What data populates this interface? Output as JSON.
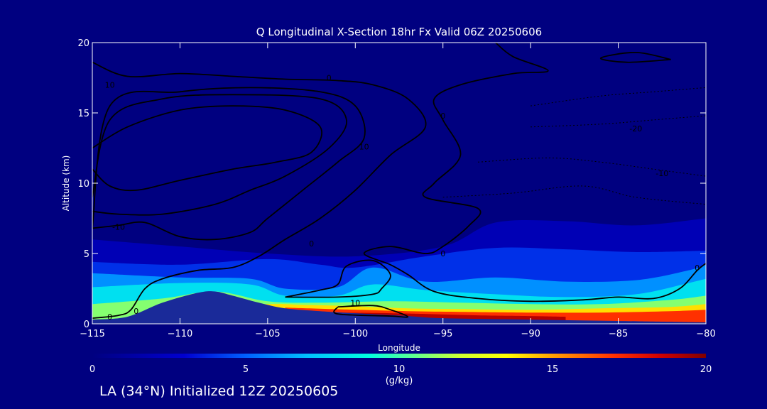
{
  "chart_data": {
    "type": "heatmap",
    "title": "Q Longitudinal X-Section 18hr  Fx Valid 06Z 20250606",
    "xlabel": "Longitude",
    "ylabel": "Altitude (km)",
    "xlim": [
      -115,
      -80
    ],
    "ylim": [
      0,
      20
    ],
    "x_ticks": [
      -115,
      -110,
      -105,
      -100,
      -95,
      -90,
      -85,
      -80
    ],
    "y_ticks": [
      0,
      5,
      10,
      15,
      20
    ],
    "colorbar": {
      "label": "(g/kg)",
      "range": [
        0,
        20
      ],
      "ticks": [
        0,
        5,
        10,
        15,
        20
      ],
      "stops": [
        {
          "v": 0,
          "c": "#000080"
        },
        {
          "v": 3,
          "c": "#0000d0"
        },
        {
          "v": 5,
          "c": "#0060ff"
        },
        {
          "v": 7,
          "c": "#00c0ff"
        },
        {
          "v": 9,
          "c": "#00ffe0"
        },
        {
          "v": 10.5,
          "c": "#60ff90"
        },
        {
          "v": 12,
          "c": "#d0ff30"
        },
        {
          "v": 13.5,
          "c": "#ffff00"
        },
        {
          "v": 15,
          "c": "#ffa000"
        },
        {
          "v": 17,
          "c": "#ff3000"
        },
        {
          "v": 18.5,
          "c": "#d00000"
        },
        {
          "v": 20,
          "c": "#800000"
        }
      ]
    },
    "terrain": [
      [
        -115,
        0.3
      ],
      [
        -113,
        0.5
      ],
      [
        -111,
        1.5
      ],
      [
        -109,
        2.2
      ],
      [
        -108,
        2.3
      ],
      [
        -107,
        2.0
      ],
      [
        -105.5,
        1.5
      ],
      [
        -104,
        1.1
      ],
      [
        -102,
        0.9
      ],
      [
        -100,
        0.75
      ],
      [
        -97,
        0.55
      ],
      [
        -95,
        0.4
      ],
      [
        -90,
        0.3
      ],
      [
        -85,
        0.2
      ],
      [
        -80,
        0.1
      ]
    ],
    "moisture_layers": [
      {
        "value": 2,
        "top": [
          [
            -115,
            6.0
          ],
          [
            -110,
            5.5
          ],
          [
            -105,
            5.0
          ],
          [
            -100,
            4.8
          ],
          [
            -95,
            5.5
          ],
          [
            -92,
            7.2
          ],
          [
            -88,
            7.3
          ],
          [
            -84,
            7.0
          ],
          [
            -80,
            7.5
          ]
        ]
      },
      {
        "value": 4,
        "top": [
          [
            -115,
            4.4
          ],
          [
            -110,
            4.2
          ],
          [
            -105,
            4.6
          ],
          [
            -102,
            4.2
          ],
          [
            -100,
            4.0
          ],
          [
            -96,
            4.8
          ],
          [
            -92,
            5.4
          ],
          [
            -88,
            5.3
          ],
          [
            -84,
            5.1
          ],
          [
            -80,
            5.2
          ]
        ]
      },
      {
        "value": 6,
        "top": [
          [
            -115,
            3.6
          ],
          [
            -110,
            3.3
          ],
          [
            -106,
            3.2
          ],
          [
            -104,
            2.5
          ],
          [
            -101,
            2.6
          ],
          [
            -99,
            4.0
          ],
          [
            -96,
            3.0
          ],
          [
            -92,
            3.3
          ],
          [
            -88,
            3.0
          ],
          [
            -84,
            3.1
          ],
          [
            -81,
            3.8
          ],
          [
            -80,
            4.2
          ]
        ]
      },
      {
        "value": 8,
        "top": [
          [
            -115,
            2.6
          ],
          [
            -110,
            2.9
          ],
          [
            -106,
            2.8
          ],
          [
            -104,
            2.0
          ],
          [
            -101,
            2.0
          ],
          [
            -99,
            2.8
          ],
          [
            -96,
            2.4
          ],
          [
            -92,
            2.1
          ],
          [
            -88,
            1.9
          ],
          [
            -84,
            2.1
          ],
          [
            -81,
            2.9
          ],
          [
            -80,
            3.2
          ]
        ]
      },
      {
        "value": 11,
        "top": [
          [
            -115,
            1.4
          ],
          [
            -111,
            1.8
          ],
          [
            -108,
            2.3
          ],
          [
            -105,
            1.6
          ],
          [
            -102,
            1.5
          ],
          [
            -98,
            1.6
          ],
          [
            -94,
            1.5
          ],
          [
            -90,
            1.4
          ],
          [
            -86,
            1.4
          ],
          [
            -82,
            1.7
          ],
          [
            -80,
            2.0
          ]
        ]
      },
      {
        "value": 14,
        "top": [
          [
            -110,
            1.2
          ],
          [
            -105,
            1.4
          ],
          [
            -103,
            1.35
          ],
          [
            -100,
            1.25
          ],
          [
            -97,
            1.1
          ],
          [
            -94,
            1.05
          ],
          [
            -90,
            1.0
          ],
          [
            -86,
            1.1
          ],
          [
            -82,
            1.2
          ],
          [
            -80,
            1.4
          ]
        ]
      },
      {
        "value": 17,
        "top": [
          [
            -104,
            1.15
          ],
          [
            -100,
            1.0
          ],
          [
            -97,
            0.9
          ],
          [
            -94,
            0.85
          ],
          [
            -90,
            0.8
          ],
          [
            -86,
            0.8
          ],
          [
            -82,
            0.9
          ],
          [
            -80,
            1.0
          ]
        ]
      },
      {
        "value": 19,
        "top": [
          [
            -101,
            0.8
          ],
          [
            -98,
            0.75
          ],
          [
            -96,
            0.7
          ],
          [
            -93,
            0.6
          ],
          [
            -90,
            0.55
          ],
          [
            -88,
            0.5
          ]
        ]
      }
    ],
    "contours": [
      {
        "style": "solid",
        "points": [
          [
            -115,
            12.5
          ],
          [
            -113,
            14.0
          ],
          [
            -110,
            15.2
          ],
          [
            -107,
            15.5
          ],
          [
            -104,
            15.2
          ],
          [
            -102,
            14.0
          ],
          [
            -102.5,
            12.2
          ],
          [
            -104.5,
            11.5
          ],
          [
            -107,
            11.0
          ],
          [
            -110,
            10.2
          ],
          [
            -112.5,
            9.5
          ],
          [
            -114,
            9.8
          ],
          [
            -115,
            11.0
          ]
        ]
      },
      {
        "style": "solid",
        "points": [
          [
            -115,
            9.0
          ],
          [
            -114,
            14.5
          ],
          [
            -111,
            16.0
          ],
          [
            -107,
            16.3
          ],
          [
            -102,
            16.0
          ],
          [
            -100.5,
            14.5
          ],
          [
            -101.5,
            12.5
          ],
          [
            -104,
            10.5
          ],
          [
            -106,
            9.5
          ],
          [
            -108,
            8.5
          ],
          [
            -111,
            7.8
          ],
          [
            -113.5,
            7.8
          ],
          [
            -115,
            8.0
          ]
        ]
      },
      {
        "style": "solid",
        "points": [
          [
            -115,
            6.8
          ],
          [
            -114,
            15.5
          ],
          [
            -110,
            16.5
          ],
          [
            -106,
            16.8
          ],
          [
            -102,
            16.5
          ],
          [
            -100,
            15.5
          ],
          [
            -99.5,
            13.2
          ],
          [
            -101,
            11.5
          ],
          [
            -103,
            9.5
          ],
          [
            -105,
            7.5
          ],
          [
            -106,
            6.5
          ],
          [
            -108,
            6.0
          ],
          [
            -110,
            6.2
          ],
          [
            -112,
            7.2
          ],
          [
            -113.5,
            7.0
          ],
          [
            -115,
            6.8
          ]
        ]
      },
      {
        "style": "solid",
        "points": [
          [
            -115,
            18.6
          ],
          [
            -113,
            17.6
          ],
          [
            -110,
            17.8
          ],
          [
            -107,
            17.6
          ],
          [
            -104,
            17.4
          ],
          [
            -101,
            17.3
          ],
          [
            -99,
            17.0
          ],
          [
            -97,
            16.0
          ],
          [
            -96,
            14.0
          ],
          [
            -98,
            12.0
          ],
          [
            -100,
            9.5
          ],
          [
            -102,
            7.5
          ],
          [
            -104,
            6.0
          ],
          [
            -105.5,
            4.8
          ],
          [
            -107,
            4.0
          ],
          [
            -109,
            3.8
          ],
          [
            -111,
            3.2
          ],
          [
            -112,
            2.5
          ],
          [
            -112.8,
            1.0
          ],
          [
            -113.5,
            0.6
          ],
          [
            -115,
            0.4
          ]
        ]
      },
      {
        "style": "solid",
        "points": [
          [
            -104,
            1.9
          ],
          [
            -101,
            1.9
          ],
          [
            -99,
            2.1
          ],
          [
            -98.5,
            2.5
          ],
          [
            -98,
            3.5
          ],
          [
            -99,
            4.5
          ],
          [
            -100.5,
            4.1
          ],
          [
            -101,
            2.8
          ],
          [
            -102,
            2.4
          ],
          [
            -104,
            1.9
          ]
        ]
      },
      {
        "style": "solid",
        "points": [
          [
            -101,
            1.2
          ],
          [
            -99,
            1.3
          ],
          [
            -98,
            1.0
          ],
          [
            -97,
            0.5
          ],
          [
            -98,
            0.55
          ],
          [
            -101,
            0.7
          ],
          [
            -101,
            1.2
          ]
        ]
      },
      {
        "style": "solid",
        "points": [
          [
            -92,
            20
          ],
          [
            -91,
            19.0
          ],
          [
            -89,
            18.0
          ],
          [
            -91,
            17.8
          ],
          [
            -94,
            17.0
          ],
          [
            -95.5,
            16.0
          ],
          [
            -95,
            14.5
          ],
          [
            -94,
            12.0
          ],
          [
            -95.5,
            10.0
          ],
          [
            -96,
            9.0
          ],
          [
            -93,
            8.2
          ],
          [
            -93.5,
            7.0
          ],
          [
            -95,
            5.5
          ],
          [
            -96,
            5.0
          ],
          [
            -98,
            5.5
          ],
          [
            -99.5,
            5.0
          ],
          [
            -98,
            4.2
          ],
          [
            -97,
            3.5
          ],
          [
            -95.5,
            2.3
          ],
          [
            -93,
            1.8
          ],
          [
            -90,
            1.6
          ],
          [
            -87,
            1.7
          ],
          [
            -85,
            1.9
          ],
          [
            -83,
            1.8
          ],
          [
            -81.5,
            2.5
          ],
          [
            -80.5,
            3.8
          ],
          [
            -80,
            4.3
          ]
        ]
      },
      {
        "style": "solid",
        "points": [
          [
            -82,
            18.8
          ],
          [
            -84,
            19.3
          ],
          [
            -86,
            18.9
          ],
          [
            -84.5,
            18.6
          ],
          [
            -82,
            18.8
          ]
        ]
      },
      {
        "style": "dashed",
        "points": [
          [
            -90,
            15.5
          ],
          [
            -86,
            16.2
          ],
          [
            -83,
            16.5
          ],
          [
            -80,
            16.8
          ]
        ]
      },
      {
        "style": "dashed",
        "points": [
          [
            -90,
            14.0
          ],
          [
            -86,
            14.2
          ],
          [
            -83,
            14.5
          ],
          [
            -80,
            14.8
          ]
        ]
      },
      {
        "style": "dashed",
        "points": [
          [
            -93,
            11.5
          ],
          [
            -89,
            11.8
          ],
          [
            -86,
            11.5
          ],
          [
            -83,
            11.0
          ],
          [
            -80,
            10.5
          ]
        ]
      },
      {
        "style": "dashed",
        "points": [
          [
            -95,
            9.0
          ],
          [
            -91,
            9.3
          ],
          [
            -87,
            9.8
          ],
          [
            -84,
            9.0
          ],
          [
            -80,
            8.5
          ]
        ]
      }
    ],
    "contour_labels": [
      {
        "text": "10",
        "x": -114,
        "y": 17.0
      },
      {
        "text": "0",
        "x": -101.5,
        "y": 17.5
      },
      {
        "text": "10",
        "x": -99.5,
        "y": 12.6
      },
      {
        "text": "0",
        "x": -95,
        "y": 14.8
      },
      {
        "text": "0",
        "x": -102.5,
        "y": 5.7
      },
      {
        "text": "0",
        "x": -95,
        "y": 5.0
      },
      {
        "text": "-10",
        "x": -113.5,
        "y": 6.9
      },
      {
        "text": "10",
        "x": -100,
        "y": 1.5
      },
      {
        "text": "0",
        "x": -112.5,
        "y": 0.9
      },
      {
        "text": "0",
        "x": -114,
        "y": 0.5
      },
      {
        "text": "0",
        "x": -80.5,
        "y": 4.0
      },
      {
        "text": "-20",
        "x": -84,
        "y": 13.9
      },
      {
        "text": "-10",
        "x": -82.5,
        "y": 10.7
      }
    ]
  },
  "footer": {
    "text": "LA (34°N) Initialized 12Z 20250605"
  }
}
